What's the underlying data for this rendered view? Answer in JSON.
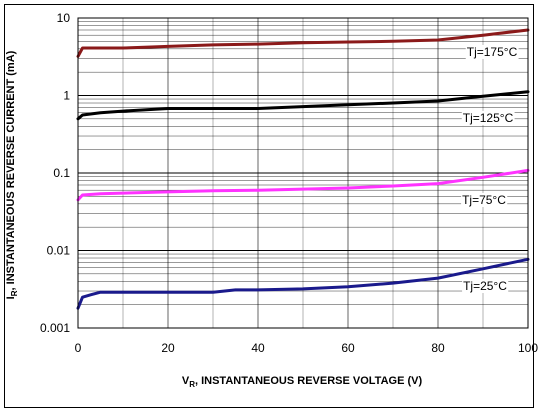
{
  "chart_data": {
    "type": "line",
    "xlabel_main": "V",
    "xlabel_sub": "R",
    "xlabel_rest": ", INSTANTANEOUS REVERSE VOLTAGE (V)",
    "ylabel_main": "I",
    "ylabel_sub": "R",
    "ylabel_rest": ", INSTANTANEOUS REVERSE CURRENT (mA)",
    "xlim": [
      0,
      100
    ],
    "ylim": [
      0.001,
      10
    ],
    "yscale": "log",
    "grid": true,
    "x_ticks": [
      0,
      20,
      40,
      60,
      80,
      100
    ],
    "x_tick_labels": [
      "0",
      "20",
      "40",
      "60",
      "80",
      "100"
    ],
    "y_ticks": [
      0.001,
      0.01,
      0.1,
      1,
      10
    ],
    "y_tick_labels": [
      "0.001",
      "0.01",
      "0.1",
      "1",
      "10"
    ],
    "series": [
      {
        "name": "Tj=175°C",
        "color": "#8b1a1a",
        "x": [
          0,
          1,
          5,
          10,
          20,
          30,
          40,
          50,
          60,
          70,
          80,
          90,
          100
        ],
        "y": [
          3.2,
          4.1,
          4.1,
          4.1,
          4.3,
          4.5,
          4.6,
          4.8,
          4.9,
          5.0,
          5.2,
          6.0,
          7.0
        ]
      },
      {
        "name": "Tj=125°C",
        "color": "#000000",
        "x": [
          0,
          1,
          5,
          10,
          20,
          30,
          40,
          50,
          60,
          70,
          80,
          90,
          100
        ],
        "y": [
          0.5,
          0.56,
          0.6,
          0.63,
          0.68,
          0.68,
          0.68,
          0.72,
          0.76,
          0.8,
          0.85,
          0.98,
          1.12
        ]
      },
      {
        "name": "Tj=75°C",
        "color": "#ff33ff",
        "x": [
          0,
          1,
          5,
          10,
          20,
          30,
          40,
          50,
          60,
          70,
          80,
          90,
          100
        ],
        "y": [
          0.045,
          0.052,
          0.054,
          0.055,
          0.057,
          0.059,
          0.06,
          0.062,
          0.064,
          0.068,
          0.073,
          0.088,
          0.108
        ]
      },
      {
        "name": "Tj=25°C",
        "color": "#1a1a8c",
        "x": [
          0,
          1,
          3,
          5,
          10,
          20,
          30,
          35,
          40,
          50,
          60,
          70,
          80,
          90,
          100
        ],
        "y": [
          0.0018,
          0.0025,
          0.0027,
          0.0029,
          0.0029,
          0.0029,
          0.0029,
          0.0031,
          0.0031,
          0.0032,
          0.0034,
          0.0038,
          0.0044,
          0.0058,
          0.0077
        ]
      }
    ]
  }
}
